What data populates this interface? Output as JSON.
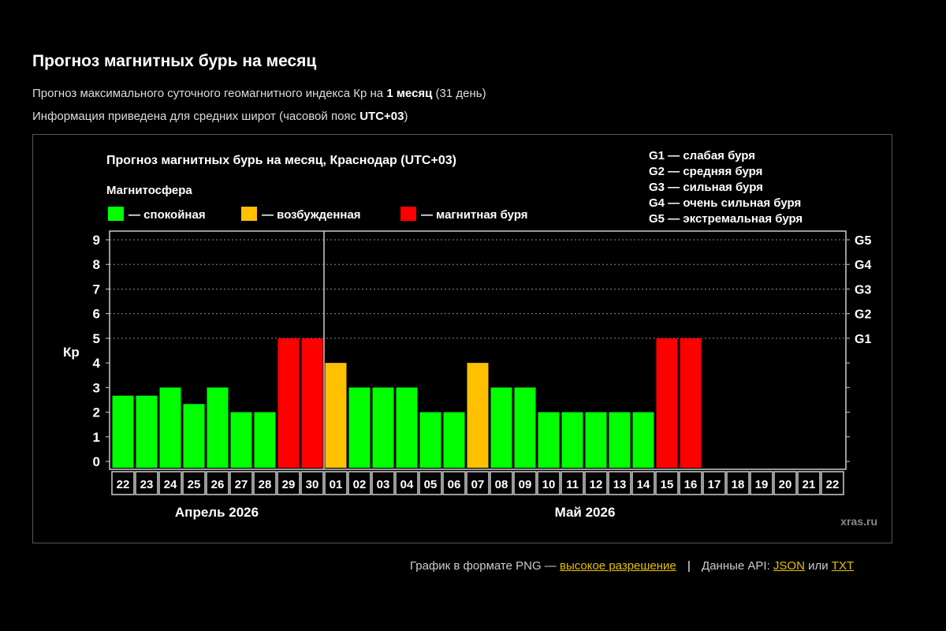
{
  "page": {
    "title": "Прогноз магнитных бурь на месяц",
    "line1_pre": "Прогноз максимального суточного геомагнитного индекса Кр на ",
    "line1_bold": "1 месяц",
    "line1_post": " (31 день)",
    "line2_pre": "Информация приведена для средних широт (часовой пояс ",
    "line2_bold": "UTC+03",
    "line2_post": ")"
  },
  "footer": {
    "png_text": "График в формате PNG —",
    "hires_link": "высокое разрешение",
    "separator": "|",
    "api_text": "Данные API:",
    "json_link": "JSON",
    "or_text": "или",
    "txt_link": "TXT"
  },
  "chart_data": {
    "type": "bar",
    "title": "Прогноз магнитных бурь на месяц, Краснодар (UTC+03)",
    "ylabel": "Кр",
    "ylim": [
      0,
      9
    ],
    "yticks": [
      0,
      1,
      2,
      3,
      4,
      5,
      6,
      7,
      8,
      9
    ],
    "right_ticks": [
      {
        "kp": 5,
        "label": "G1"
      },
      {
        "kp": 6,
        "label": "G2"
      },
      {
        "kp": 7,
        "label": "G3"
      },
      {
        "kp": 8,
        "label": "G4"
      },
      {
        "kp": 9,
        "label": "G5"
      }
    ],
    "legend_title": "Магнитосфера",
    "legend": [
      {
        "label": "— спокойная",
        "color": "#00ff00"
      },
      {
        "label": "— возбужденная",
        "color": "#ffc000"
      },
      {
        "label": "— магнитная буря",
        "color": "#ff0000"
      }
    ],
    "g_legend": [
      "G1 — слабая буря",
      "G2 — средняя буря",
      "G3 — сильная буря",
      "G4 — очень сильная буря",
      "G5 — экстремальная буря"
    ],
    "months": [
      {
        "label": "Апрель 2026",
        "days": 9
      },
      {
        "label": "Май 2026",
        "days": 22
      }
    ],
    "categories": [
      "22",
      "23",
      "24",
      "25",
      "26",
      "27",
      "28",
      "29",
      "30",
      "01",
      "02",
      "03",
      "04",
      "05",
      "06",
      "07",
      "08",
      "09",
      "10",
      "11",
      "12",
      "13",
      "14",
      "15",
      "16",
      "17",
      "18",
      "19",
      "20",
      "21",
      "22"
    ],
    "values": [
      2.67,
      2.67,
      3,
      2.33,
      3,
      2,
      2,
      5,
      5,
      4,
      3,
      3,
      3,
      2,
      2,
      4,
      3,
      3,
      2,
      2,
      2,
      2,
      2,
      5,
      5,
      null,
      null,
      null,
      null,
      null,
      null
    ],
    "levels": [
      "calm",
      "calm",
      "calm",
      "calm",
      "calm",
      "calm",
      "calm",
      "storm",
      "storm",
      "active",
      "calm",
      "calm",
      "calm",
      "calm",
      "calm",
      "active",
      "calm",
      "calm",
      "calm",
      "calm",
      "calm",
      "calm",
      "calm",
      "storm",
      "storm",
      null,
      null,
      null,
      null,
      null,
      null
    ],
    "colors": {
      "calm": "#00ff00",
      "active": "#ffc000",
      "storm": "#ff0000"
    },
    "watermark": "xras.ru"
  }
}
